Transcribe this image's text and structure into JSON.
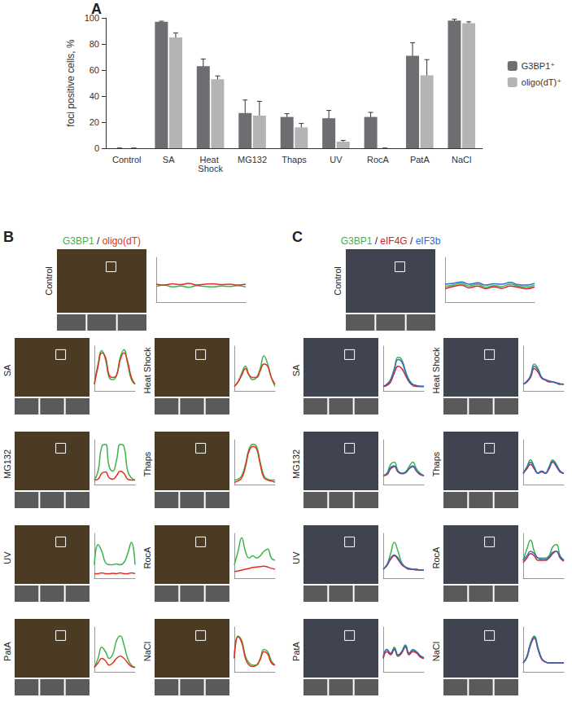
{
  "chart_data": [
    {
      "type": "bar",
      "title": "A",
      "categories": [
        "Control",
        "SA",
        "Heat Shock",
        "MG132",
        "Thaps",
        "UV",
        "RocA",
        "PatA",
        "NaCl"
      ],
      "series": [
        {
          "name": "G3BP1⁺",
          "color": "#6d6e71",
          "values": [
            0,
            97,
            63,
            27,
            24,
            23,
            24,
            71,
            98
          ],
          "errors": [
            0,
            0.5,
            5.5,
            10,
            2.5,
            6,
            3.5,
            10,
            1
          ]
        },
        {
          "name": "oligo(dT)⁺",
          "color": "#b4b4b4",
          "values": [
            0,
            85,
            53,
            25,
            16,
            5,
            0,
            56,
            96
          ],
          "errors": [
            0,
            3.5,
            2.5,
            11,
            3,
            1,
            0,
            12,
            1
          ]
        }
      ],
      "ylabel": "foci positive cells, %",
      "ylim": [
        0,
        100
      ],
      "yticks": [
        0,
        20,
        40,
        60,
        80,
        100
      ],
      "grid": false,
      "legend": "right"
    },
    {
      "type": "line",
      "title": "B",
      "channels": [
        {
          "name": "G3BP1",
          "color": "#3cb44b"
        },
        {
          "name": "oligo(dT)",
          "color": "#e0301e"
        }
      ],
      "separator": " / ",
      "ylim": [
        0,
        1
      ],
      "yticks": [
        0,
        1
      ],
      "tick_labels": false,
      "panels": [
        {
          "name": "Control",
          "series": [
            [
              0.35,
              0.38,
              0.34,
              0.36,
              0.33,
              0.37,
              0.35,
              0.34,
              0.36,
              0.35,
              0.37,
              0.34
            ],
            [
              0.4,
              0.38,
              0.41,
              0.39,
              0.42,
              0.38,
              0.4,
              0.41,
              0.39,
              0.4,
              0.38,
              0.4
            ]
          ]
        },
        {
          "name": "SA",
          "series": [
            [
              0.15,
              0.6,
              0.9,
              0.7,
              0.3,
              0.25,
              0.35,
              0.75,
              0.92,
              0.6,
              0.25,
              0.15
            ],
            [
              0.15,
              0.55,
              0.85,
              0.75,
              0.35,
              0.3,
              0.35,
              0.7,
              0.85,
              0.65,
              0.3,
              0.15
            ]
          ]
        },
        {
          "name": "Heat Shock",
          "series": [
            [
              0.1,
              0.2,
              0.4,
              0.55,
              0.35,
              0.25,
              0.3,
              0.5,
              0.78,
              0.6,
              0.3,
              0.1
            ],
            [
              0.1,
              0.2,
              0.35,
              0.5,
              0.35,
              0.3,
              0.3,
              0.45,
              0.6,
              0.55,
              0.3,
              0.15
            ]
          ]
        },
        {
          "name": "MG132",
          "series": [
            [
              0.1,
              0.3,
              0.85,
              0.9,
              0.4,
              0.3,
              0.55,
              0.9,
              0.85,
              0.3,
              0.15,
              0.1
            ],
            [
              0.1,
              0.12,
              0.25,
              0.28,
              0.15,
              0.12,
              0.2,
              0.3,
              0.25,
              0.12,
              0.1,
              0.1
            ]
          ]
        },
        {
          "name": "Thaps",
          "series": [
            [
              0.1,
              0.12,
              0.2,
              0.45,
              0.8,
              0.9,
              0.85,
              0.5,
              0.2,
              0.12,
              0.1,
              0.1
            ],
            [
              0.05,
              0.08,
              0.15,
              0.4,
              0.75,
              0.85,
              0.8,
              0.45,
              0.15,
              0.1,
              0.08,
              0.05
            ]
          ]
        },
        {
          "name": "UV",
          "series": [
            [
              0.3,
              0.75,
              0.6,
              0.35,
              0.3,
              0.3,
              0.32,
              0.3,
              0.35,
              0.55,
              0.8,
              0.3
            ],
            [
              0.1,
              0.1,
              0.12,
              0.1,
              0.1,
              0.11,
              0.1,
              0.12,
              0.1,
              0.1,
              0.12,
              0.1
            ]
          ]
        },
        {
          "name": "RocA",
          "series": [
            [
              0.3,
              0.6,
              0.9,
              0.6,
              0.45,
              0.5,
              0.45,
              0.5,
              0.6,
              0.65,
              0.45,
              0.4
            ],
            [
              0.15,
              0.16,
              0.18,
              0.2,
              0.22,
              0.24,
              0.25,
              0.26,
              0.27,
              0.25,
              0.22,
              0.2
            ]
          ]
        },
        {
          "name": "PatA",
          "series": [
            [
              0.1,
              0.3,
              0.55,
              0.45,
              0.3,
              0.4,
              0.7,
              0.8,
              0.6,
              0.3,
              0.15,
              0.1
            ],
            [
              0.1,
              0.2,
              0.3,
              0.25,
              0.15,
              0.2,
              0.3,
              0.35,
              0.3,
              0.2,
              0.12,
              0.1
            ]
          ]
        },
        {
          "name": "NaCl",
          "series": [
            [
              0.3,
              0.8,
              0.7,
              0.35,
              0.2,
              0.15,
              0.15,
              0.3,
              0.5,
              0.45,
              0.25,
              0.15
            ],
            [
              0.3,
              0.78,
              0.65,
              0.3,
              0.15,
              0.12,
              0.15,
              0.28,
              0.45,
              0.4,
              0.2,
              0.15
            ]
          ]
        }
      ]
    },
    {
      "type": "line",
      "title": "C",
      "channels": [
        {
          "name": "G3BP1",
          "color": "#3cb44b"
        },
        {
          "name": "eIF4G",
          "color": "#d4202a"
        },
        {
          "name": "eIF3b",
          "color": "#2f6cc9"
        }
      ],
      "separator": " / ",
      "ylim": [
        0,
        1
      ],
      "yticks": [
        0,
        1
      ],
      "tick_labels": false,
      "panels": [
        {
          "name": "Control",
          "series": [
            [
              0.35,
              0.38,
              0.42,
              0.36,
              0.4,
              0.33,
              0.37,
              0.35,
              0.4,
              0.36,
              0.34,
              0.38
            ],
            [
              0.3,
              0.35,
              0.38,
              0.32,
              0.36,
              0.3,
              0.34,
              0.31,
              0.36,
              0.33,
              0.3,
              0.34
            ],
            [
              0.4,
              0.42,
              0.45,
              0.4,
              0.43,
              0.38,
              0.41,
              0.4,
              0.44,
              0.39,
              0.38,
              0.42
            ]
          ]
        },
        {
          "name": "SA",
          "series": [
            [
              0.1,
              0.15,
              0.25,
              0.5,
              0.75,
              0.7,
              0.45,
              0.25,
              0.15,
              0.12,
              0.1,
              0.1
            ],
            [
              0.1,
              0.12,
              0.2,
              0.4,
              0.55,
              0.5,
              0.35,
              0.2,
              0.12,
              0.1,
              0.1,
              0.1
            ],
            [
              0.1,
              0.15,
              0.25,
              0.48,
              0.7,
              0.65,
              0.42,
              0.22,
              0.14,
              0.12,
              0.1,
              0.1
            ]
          ]
        },
        {
          "name": "Heat Shock",
          "series": [
            [
              0.15,
              0.2,
              0.35,
              0.6,
              0.5,
              0.3,
              0.25,
              0.22,
              0.2,
              0.18,
              0.15,
              0.15
            ],
            [
              0.15,
              0.2,
              0.3,
              0.5,
              0.42,
              0.28,
              0.24,
              0.2,
              0.2,
              0.17,
              0.15,
              0.15
            ],
            [
              0.15,
              0.22,
              0.33,
              0.55,
              0.47,
              0.3,
              0.25,
              0.22,
              0.2,
              0.18,
              0.16,
              0.15
            ]
          ]
        },
        {
          "name": "MG132",
          "series": [
            [
              0.2,
              0.25,
              0.45,
              0.5,
              0.3,
              0.25,
              0.28,
              0.4,
              0.5,
              0.35,
              0.25,
              0.2
            ],
            [
              0.2,
              0.22,
              0.35,
              0.4,
              0.28,
              0.24,
              0.26,
              0.35,
              0.4,
              0.3,
              0.22,
              0.2
            ],
            [
              0.2,
              0.24,
              0.38,
              0.42,
              0.3,
              0.25,
              0.27,
              0.36,
              0.42,
              0.3,
              0.24,
              0.2
            ]
          ]
        },
        {
          "name": "Thaps",
          "series": [
            [
              0.25,
              0.4,
              0.55,
              0.4,
              0.25,
              0.3,
              0.25,
              0.4,
              0.55,
              0.45,
              0.3,
              0.25
            ],
            [
              0.25,
              0.35,
              0.45,
              0.35,
              0.25,
              0.28,
              0.25,
              0.35,
              0.5,
              0.4,
              0.28,
              0.25
            ],
            [
              0.25,
              0.38,
              0.5,
              0.38,
              0.26,
              0.3,
              0.26,
              0.38,
              0.52,
              0.42,
              0.3,
              0.25
            ]
          ]
        },
        {
          "name": "UV",
          "series": [
            [
              0.2,
              0.3,
              0.55,
              0.8,
              0.6,
              0.35,
              0.25,
              0.22,
              0.2,
              0.2,
              0.18,
              0.18
            ],
            [
              0.2,
              0.28,
              0.42,
              0.5,
              0.42,
              0.3,
              0.24,
              0.2,
              0.2,
              0.18,
              0.18,
              0.18
            ],
            [
              0.2,
              0.3,
              0.45,
              0.52,
              0.45,
              0.32,
              0.25,
              0.22,
              0.2,
              0.2,
              0.18,
              0.18
            ]
          ]
        },
        {
          "name": "RocA",
          "series": [
            [
              0.4,
              0.65,
              0.85,
              0.6,
              0.45,
              0.45,
              0.45,
              0.5,
              0.7,
              0.75,
              0.5,
              0.4
            ],
            [
              0.35,
              0.45,
              0.55,
              0.5,
              0.4,
              0.4,
              0.4,
              0.45,
              0.55,
              0.6,
              0.45,
              0.38
            ],
            [
              0.4,
              0.5,
              0.6,
              0.55,
              0.45,
              0.42,
              0.42,
              0.48,
              0.58,
              0.6,
              0.48,
              0.4
            ]
          ]
        },
        {
          "name": "PatA",
          "series": [
            [
              0.3,
              0.5,
              0.4,
              0.55,
              0.35,
              0.45,
              0.6,
              0.4,
              0.5,
              0.45,
              0.35,
              0.3
            ],
            [
              0.3,
              0.45,
              0.38,
              0.5,
              0.35,
              0.42,
              0.55,
              0.38,
              0.45,
              0.42,
              0.33,
              0.3
            ],
            [
              0.35,
              0.5,
              0.42,
              0.52,
              0.38,
              0.45,
              0.58,
              0.42,
              0.48,
              0.45,
              0.36,
              0.32
            ]
          ]
        },
        {
          "name": "NaCl",
          "series": [
            [
              0.2,
              0.35,
              0.65,
              0.8,
              0.55,
              0.3,
              0.22,
              0.2,
              0.2,
              0.2,
              0.2,
              0.2
            ],
            [
              0.2,
              0.32,
              0.6,
              0.75,
              0.5,
              0.28,
              0.22,
              0.2,
              0.2,
              0.2,
              0.2,
              0.2
            ],
            [
              0.2,
              0.33,
              0.62,
              0.78,
              0.52,
              0.3,
              0.22,
              0.2,
              0.2,
              0.2,
              0.2,
              0.2
            ]
          ]
        }
      ]
    }
  ]
}
